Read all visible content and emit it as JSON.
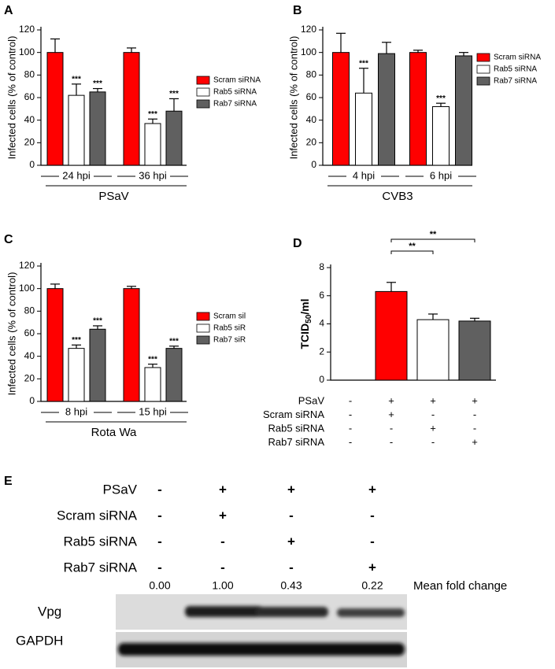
{
  "chart_data": [
    {
      "type": "bar",
      "panel": "A",
      "ylabel": "Infected cells (% of control)",
      "xlabel": "PSaV",
      "categories": [
        "24 hpi",
        "36 hpi"
      ],
      "ylim": [
        0,
        120
      ],
      "yticks": [
        0,
        20,
        40,
        60,
        80,
        100,
        120
      ],
      "series": [
        {
          "name": "Scram siRNA",
          "color": "#ff0000",
          "values": [
            100,
            100
          ],
          "errors": [
            12,
            4
          ]
        },
        {
          "name": "Rab5 siRNA",
          "color": "#ffffff",
          "values": [
            62,
            37
          ],
          "errors": [
            10,
            4
          ],
          "significance": [
            "***",
            "***"
          ]
        },
        {
          "name": "Rab7 siRNA",
          "color": "#606060",
          "values": [
            65,
            48
          ],
          "errors": [
            3,
            11
          ],
          "significance": [
            "***",
            "***"
          ]
        }
      ]
    },
    {
      "type": "bar",
      "panel": "B",
      "ylabel": "Infected cells (% of control)",
      "xlabel": "CVB3",
      "categories": [
        "4 hpi",
        "6 hpi"
      ],
      "ylim": [
        0,
        120
      ],
      "yticks": [
        0,
        20,
        40,
        60,
        80,
        100,
        120
      ],
      "series": [
        {
          "name": "Scram siRNA",
          "color": "#ff0000",
          "values": [
            100,
            100
          ],
          "errors": [
            17,
            2
          ]
        },
        {
          "name": "Rab5 siRNA",
          "color": "#ffffff",
          "values": [
            64,
            52
          ],
          "errors": [
            22,
            3
          ],
          "significance": [
            "***",
            "***"
          ]
        },
        {
          "name": "Rab7 siRNA",
          "color": "#606060",
          "values": [
            99,
            97
          ],
          "errors": [
            10,
            3
          ]
        }
      ]
    },
    {
      "type": "bar",
      "panel": "C",
      "ylabel": "Infected cells (% of control)",
      "xlabel": "Rota Wa",
      "categories": [
        "8 hpi",
        "15 hpi"
      ],
      "ylim": [
        0,
        120
      ],
      "yticks": [
        0,
        20,
        40,
        60,
        80,
        100,
        120
      ],
      "series": [
        {
          "name": "Scram sil",
          "color": "#ff0000",
          "values": [
            100,
            100
          ],
          "errors": [
            4,
            2
          ]
        },
        {
          "name": "Rab5 siR",
          "color": "#ffffff",
          "values": [
            47,
            30
          ],
          "errors": [
            3,
            3
          ],
          "significance": [
            "***",
            "***"
          ]
        },
        {
          "name": "Rab7 siR",
          "color": "#606060",
          "values": [
            64,
            47
          ],
          "errors": [
            3,
            2
          ],
          "significance": [
            "***",
            "***"
          ]
        }
      ]
    },
    {
      "type": "bar",
      "panel": "D",
      "ylabel": {
        "text": "TCID",
        "subscript": "50",
        "suffix": "/ml"
      },
      "values": [
        null,
        6.3,
        4.3,
        4.2
      ],
      "errors": [
        null,
        0.65,
        0.4,
        0.2
      ],
      "colors": [
        null,
        "#ff0000",
        "#ffffff",
        "#606060"
      ],
      "ylim": [
        0,
        8
      ],
      "yticks": [
        0,
        2,
        4,
        6,
        8
      ],
      "comparisons": [
        {
          "label": "**"
        },
        {
          "label": "**"
        }
      ],
      "conditions": [
        {
          "name": "PSaV",
          "signs": [
            "-",
            "+",
            "+",
            "+"
          ]
        },
        {
          "name": "Scram siRNA",
          "signs": [
            "-",
            "+",
            "-",
            "-"
          ]
        },
        {
          "name": "Rab5 siRNA",
          "signs": [
            "-",
            "-",
            "+",
            "-"
          ]
        },
        {
          "name": "Rab7 siRNA",
          "signs": [
            "-",
            "-",
            "-",
            "+"
          ]
        }
      ]
    }
  ],
  "blot": {
    "panel": "E",
    "conditions": [
      {
        "name": "PSaV",
        "signs": [
          "-",
          "+",
          "+",
          "+"
        ]
      },
      {
        "name": "Scram siRNA",
        "signs": [
          "-",
          "+",
          "-",
          "-"
        ]
      },
      {
        "name": "Rab5 siRNA",
        "signs": [
          "-",
          "-",
          "+",
          "-"
        ]
      },
      {
        "name": "Rab7 siRNA",
        "signs": [
          "-",
          "-",
          "-",
          "+"
        ]
      }
    ],
    "fold_changes": [
      "0.00",
      "1.00",
      "0.43",
      "0.22"
    ],
    "fold_change_label": "Mean fold change",
    "bands": [
      "Vpg",
      "GAPDH"
    ]
  }
}
